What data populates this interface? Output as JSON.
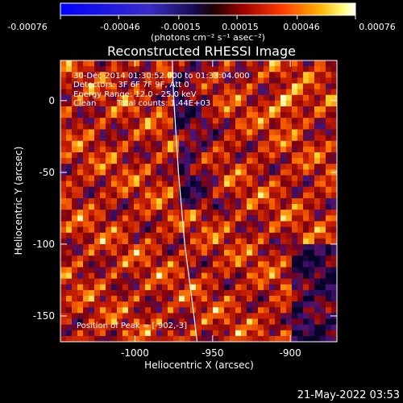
{
  "colorbar": {
    "ticks": [
      "-0.00076",
      "-0.00046",
      "-0.00015",
      "0.00015",
      "0.00046",
      "0.00076"
    ],
    "tick_values": [
      -0.00076,
      -0.00046,
      -0.00015,
      0.00015,
      0.00046,
      0.00076
    ],
    "range": [
      -0.00076,
      0.00076
    ],
    "units": "(photons cm⁻² s⁻¹ asec⁻²)",
    "colormap": "blue-black-red-yellow-white"
  },
  "title": "Reconstructed RHESSI Image",
  "annotations": {
    "time": "30-Dec-2014 01:30:52.000 to 01:33:04.000",
    "detectors": "Detectors: 3F 6F 7F 9F, Att 0",
    "energy": "Energy Range: 12.0 - 25.0 keV",
    "clean": "Clean",
    "counts": "Total counts: 1.44E+03",
    "peak": "Position of Peak = [-902,-3]"
  },
  "footer": {
    "timestamp": "21-May-2022 03:53"
  },
  "chart_data": {
    "type": "heatmap",
    "title": "Reconstructed RHESSI Image",
    "xlabel": "Heliocentric X (arcsec)",
    "ylabel": "Heliocentric Y (arcsec)",
    "xlim": [
      -1048,
      -870
    ],
    "ylim": [
      -168,
      28
    ],
    "x_ticks": [
      -1000,
      -950,
      -900
    ],
    "x_tick_labels": [
      "-1000",
      "-950",
      "-900"
    ],
    "y_ticks": [
      0,
      -50,
      -100,
      -150
    ],
    "y_tick_labels": [
      "0",
      "-50",
      "-100",
      "-150"
    ],
    "peak": [
      -902,
      -3
    ],
    "limb_curve": [
      [
        -976,
        28
      ],
      [
        -975,
        0
      ],
      [
        -972,
        -50
      ],
      [
        -968,
        -100
      ],
      [
        -962,
        -150
      ],
      [
        -960,
        -168
      ]
    ],
    "grid": false,
    "colors": {
      "limb": "#ffffff",
      "background": "#000000"
    }
  }
}
